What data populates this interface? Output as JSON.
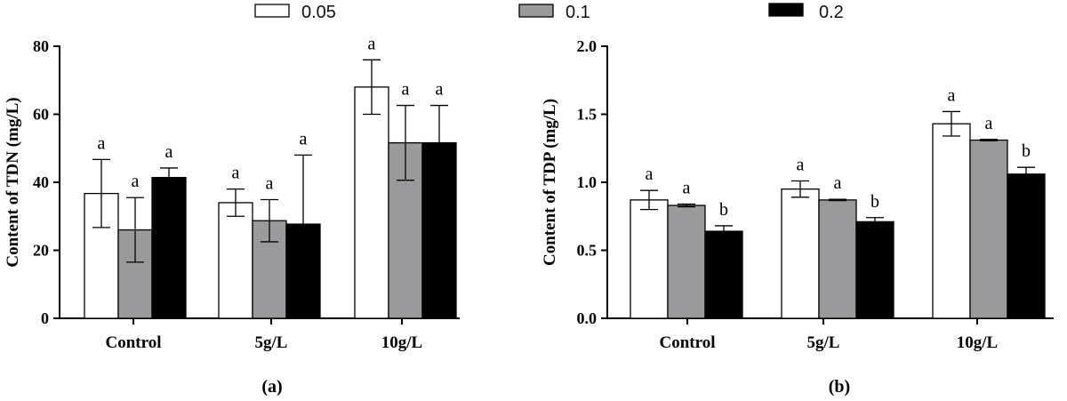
{
  "legend": [
    {
      "label": "0.05",
      "color": "#ffffff"
    },
    {
      "label": "0.1",
      "color": "#9a9a9c"
    },
    {
      "label": "0.2",
      "color": "#000000"
    }
  ],
  "chart_data": [
    {
      "type": "bar",
      "panel_label": "(a)",
      "ylabel": "Content of  TDN (mg/L)",
      "xlabel": "",
      "categories": [
        "Control",
        "5g/L",
        "10g/L"
      ],
      "ylim": [
        0,
        80
      ],
      "yticks": [
        0,
        20,
        40,
        60,
        80
      ],
      "ytick_labels": [
        "0",
        "20",
        "40",
        "60",
        "80"
      ],
      "series": [
        {
          "name": "0.05",
          "values": [
            36.7,
            34.0,
            68.0
          ],
          "errors": [
            10.0,
            4.0,
            8.0
          ],
          "letters": [
            "a",
            "a",
            "a"
          ]
        },
        {
          "name": "0.1",
          "values": [
            26.0,
            28.7,
            51.6
          ],
          "errors": [
            9.5,
            6.2,
            11.0
          ],
          "letters": [
            "a",
            "a",
            "a"
          ]
        },
        {
          "name": "0.2",
          "values": [
            41.4,
            27.7,
            51.6
          ],
          "errors": [
            2.8,
            20.3,
            11.0
          ],
          "letters": [
            "a",
            "a",
            "a"
          ]
        }
      ]
    },
    {
      "type": "bar",
      "panel_label": "(b)",
      "ylabel": "Content of  TDP (mg/L)",
      "xlabel": "",
      "categories": [
        "Control",
        "5g/L",
        "10g/L"
      ],
      "ylim": [
        0,
        2.0
      ],
      "yticks": [
        0,
        0.5,
        1.0,
        1.5,
        2.0
      ],
      "ytick_labels": [
        "0.0",
        "0.5",
        "1.0",
        "1.5",
        "2.0"
      ],
      "series": [
        {
          "name": "0.05",
          "values": [
            0.87,
            0.95,
            1.43
          ],
          "errors": [
            0.07,
            0.06,
            0.09
          ],
          "letters": [
            "a",
            "a",
            "a"
          ]
        },
        {
          "name": "0.1",
          "values": [
            0.83,
            0.87,
            1.31
          ],
          "errors": [
            0.01,
            0.005,
            0.005
          ],
          "letters": [
            "a",
            "a",
            "a"
          ]
        },
        {
          "name": "0.2",
          "values": [
            0.64,
            0.71,
            1.06
          ],
          "errors": [
            0.04,
            0.03,
            0.05
          ],
          "letters": [
            "b",
            "b",
            "b"
          ]
        }
      ]
    }
  ]
}
